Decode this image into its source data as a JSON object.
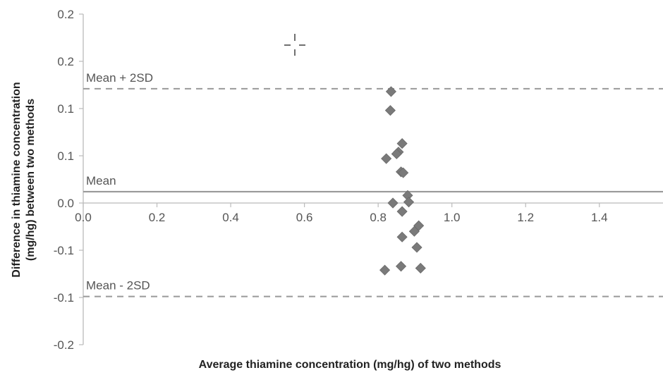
{
  "chart_data": {
    "type": "scatter",
    "xlabel": "Average thiamine concentration (mg/hg)  of two methods",
    "ylabel_line1": "Difference in thiamine concentration",
    "ylabel_line2": "(mg/hg) between two methods",
    "xlim": [
      0,
      1.5
    ],
    "ylim": [
      -0.15,
      0.2
    ],
    "x_ticks": [
      {
        "value": 0.0,
        "label": "0.0"
      },
      {
        "value": 0.2,
        "label": "0.2"
      },
      {
        "value": 0.4,
        "label": "0.4"
      },
      {
        "value": 0.6,
        "label": "0.6"
      },
      {
        "value": 0.8,
        "label": "0.8"
      },
      {
        "value": 1.0,
        "label": "1.0"
      },
      {
        "value": 1.2,
        "label": "1.2"
      },
      {
        "value": 1.4,
        "label": "1.4"
      }
    ],
    "y_ticks": [
      {
        "value": 0.2,
        "label": "0.2"
      },
      {
        "value": 0.15,
        "label": "0.2"
      },
      {
        "value": 0.1,
        "label": "0.1"
      },
      {
        "value": 0.05,
        "label": "0.1"
      },
      {
        "value": 0.0,
        "label": "0.0"
      },
      {
        "value": -0.05,
        "label": "-0.1"
      },
      {
        "value": -0.1,
        "label": "-0.1"
      },
      {
        "value": -0.15,
        "label": "-0.2"
      }
    ],
    "reference_lines": [
      {
        "label": "Mean + 2SD",
        "value": 0.121,
        "style": "dashed"
      },
      {
        "label": "Mean",
        "value": 0.012,
        "style": "solid"
      },
      {
        "label": "Mean - 2SD",
        "value": -0.099,
        "style": "dashed"
      }
    ],
    "points": [
      {
        "x": 0.835,
        "y": 0.118
      },
      {
        "x": 0.833,
        "y": 0.098
      },
      {
        "x": 0.865,
        "y": 0.063
      },
      {
        "x": 0.855,
        "y": 0.054
      },
      {
        "x": 0.85,
        "y": 0.052
      },
      {
        "x": 0.822,
        "y": 0.047
      },
      {
        "x": 0.862,
        "y": 0.033
      },
      {
        "x": 0.868,
        "y": 0.032
      },
      {
        "x": 0.88,
        "y": 0.008
      },
      {
        "x": 0.883,
        "y": 0.001
      },
      {
        "x": 0.84,
        "y": 0.0
      },
      {
        "x": 0.865,
        "y": -0.009
      },
      {
        "x": 0.91,
        "y": -0.024
      },
      {
        "x": 0.898,
        "y": -0.03
      },
      {
        "x": 0.865,
        "y": -0.036
      },
      {
        "x": 0.905,
        "y": -0.047
      },
      {
        "x": 0.818,
        "y": -0.071
      },
      {
        "x": 0.862,
        "y": -0.067
      },
      {
        "x": 0.915,
        "y": -0.069
      }
    ],
    "colors": {
      "marker": "#7a7a7a",
      "marker_edge": "#6a6a6a",
      "reference_line": "#999999",
      "axis": "#bbbbbb",
      "text": "#555555"
    },
    "grid": false,
    "legend": "none"
  }
}
